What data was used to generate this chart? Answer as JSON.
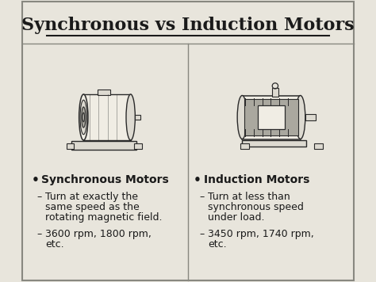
{
  "title": "Synchronous vs Induction Motors",
  "bg_color": "#e8e5dc",
  "border_color": "#888880",
  "left_header": "Synchronous Motors",
  "left_sub1_lines": [
    "Turn at exactly the",
    "same speed as the",
    "rotating magnetic field."
  ],
  "left_sub2_lines": [
    "3600 rpm, 1800 rpm,",
    "etc."
  ],
  "right_header": "Induction Motors",
  "right_sub1_lines": [
    "Turn at less than",
    "synchronous speed",
    "under load."
  ],
  "right_sub2_lines": [
    "3450 rpm, 1740 rpm,",
    "etc."
  ],
  "text_color": "#1a1a1a",
  "motor_face": "#f0ede4",
  "motor_body": "#dddad1",
  "motor_edge": "#2a2a2a",
  "motor_dark": "#aaa89f",
  "bullet_symbol": "•",
  "dash_symbol": "–",
  "header_fontsize": 16,
  "subheader_fontsize": 10,
  "body_fontsize": 9
}
